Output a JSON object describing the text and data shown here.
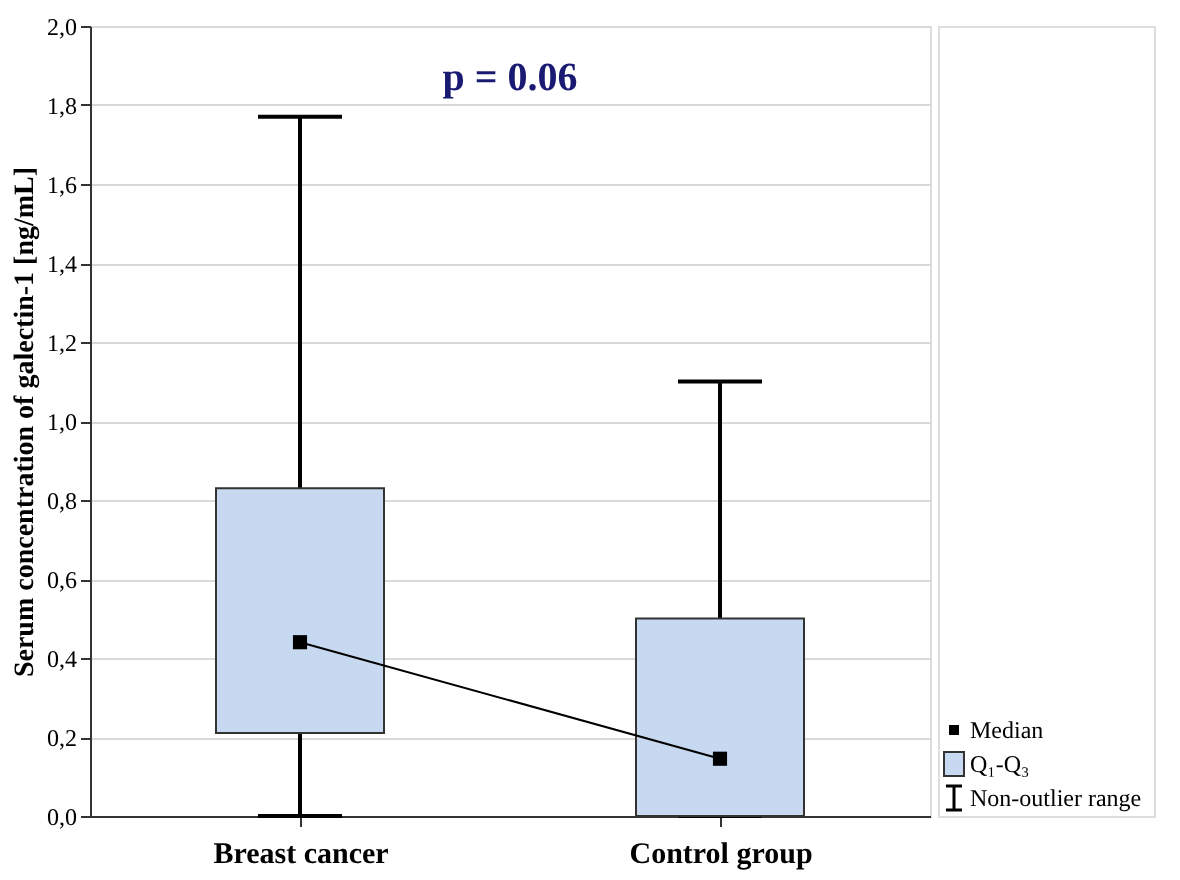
{
  "chart_data": {
    "type": "box",
    "categories": [
      "Breast cancer",
      "Control group"
    ],
    "ylabel": "Serum concentration of galectin-1 [ng/mL]",
    "ylim": [
      0,
      2
    ],
    "yticks": [
      {
        "value": 0,
        "label": "0,0"
      },
      {
        "value": 0.2,
        "label": "0,2"
      },
      {
        "value": 0.4,
        "label": "0,4"
      },
      {
        "value": 0.6,
        "label": "0,6"
      },
      {
        "value": 0.8,
        "label": "0,8"
      },
      {
        "value": 1.0,
        "label": "1,0"
      },
      {
        "value": 1.2,
        "label": "1,2"
      },
      {
        "value": 1.4,
        "label": "1,4"
      },
      {
        "value": 1.6,
        "label": "1,6"
      },
      {
        "value": 1.8,
        "label": "1,8"
      },
      {
        "value": 2.0,
        "label": "2,0"
      }
    ],
    "series": [
      {
        "name": "Q₁-Q₃",
        "color": "#c6d9f0",
        "boxes": [
          {
            "low": 0.0,
            "q1": 0.21,
            "q3": 0.83,
            "high": 1.77
          },
          {
            "low": 0.0,
            "q1": 0.0,
            "q3": 0.5,
            "high": 1.1
          }
        ]
      },
      {
        "name": "Median",
        "type": "line",
        "marker": "square",
        "color": "#000000",
        "values": [
          0.44,
          0.145
        ]
      }
    ],
    "annotations": [
      "p = 0.06",
      "Non-outlier range"
    ],
    "grid": "y",
    "legend": "bottom right"
  }
}
